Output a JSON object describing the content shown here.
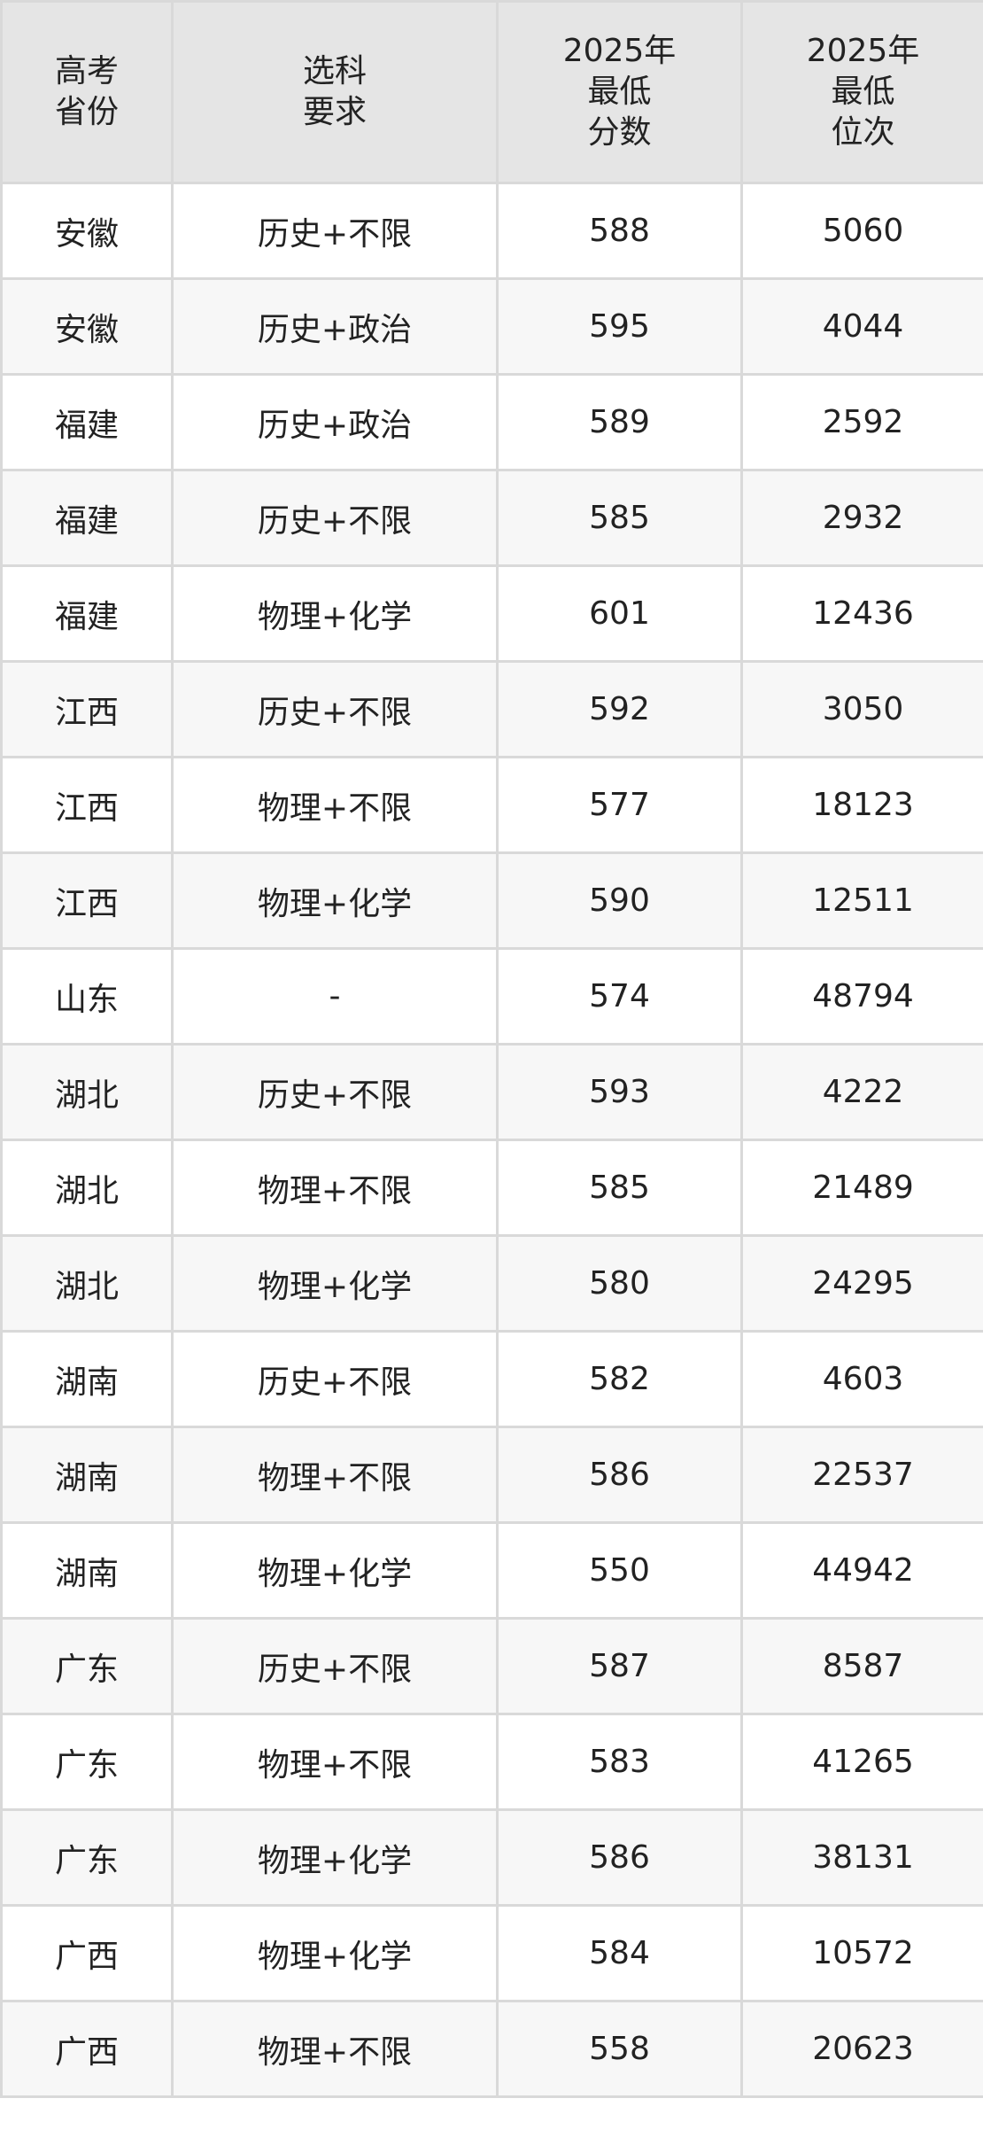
{
  "table": {
    "headers": [
      "高考\n省份",
      "选科\n要求",
      "2025年\n最低\n分数",
      "2025年\n最低\n位次"
    ],
    "rows": [
      [
        "安徽",
        "历史+不限",
        "588",
        "5060"
      ],
      [
        "安徽",
        "历史+政治",
        "595",
        "4044"
      ],
      [
        "福建",
        "历史+政治",
        "589",
        "2592"
      ],
      [
        "福建",
        "历史+不限",
        "585",
        "2932"
      ],
      [
        "福建",
        "物理+化学",
        "601",
        "12436"
      ],
      [
        "江西",
        "历史+不限",
        "592",
        "3050"
      ],
      [
        "江西",
        "物理+不限",
        "577",
        "18123"
      ],
      [
        "江西",
        "物理+化学",
        "590",
        "12511"
      ],
      [
        "山东",
        "-",
        "574",
        "48794"
      ],
      [
        "湖北",
        "历史+不限",
        "593",
        "4222"
      ],
      [
        "湖北",
        "物理+不限",
        "585",
        "21489"
      ],
      [
        "湖北",
        "物理+化学",
        "580",
        "24295"
      ],
      [
        "湖南",
        "历史+不限",
        "582",
        "4603"
      ],
      [
        "湖南",
        "物理+不限",
        "586",
        "22537"
      ],
      [
        "湖南",
        "物理+化学",
        "550",
        "44942"
      ],
      [
        "广东",
        "历史+不限",
        "587",
        "8587"
      ],
      [
        "广东",
        "物理+不限",
        "583",
        "41265"
      ],
      [
        "广东",
        "物理+化学",
        "586",
        "38131"
      ],
      [
        "广西",
        "物理+化学",
        "584",
        "10572"
      ],
      [
        "广西",
        "物理+不限",
        "558",
        "20623"
      ]
    ]
  }
}
